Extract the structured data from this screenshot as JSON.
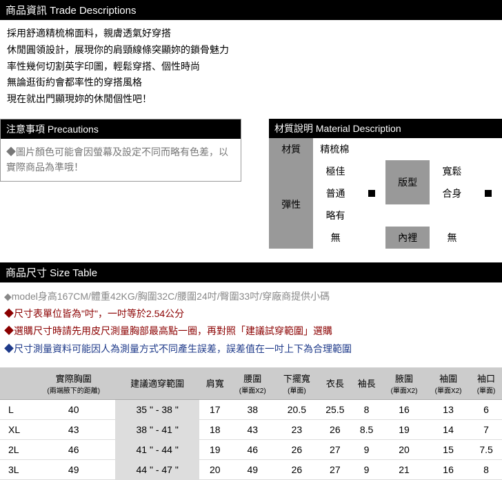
{
  "trade": {
    "header": "商品資訊 Trade Descriptions",
    "lines": [
      "採用舒適精梳棉面料，親膚透氣好穿搭",
      "休閒圓領設計，展現你的肩頸線條突顯妳的鎖骨魅力",
      "率性幾何切割英字印圖，輕鬆穿搭、個性時尚",
      "無論逛街約會都率性的穿搭風格",
      "現在就出門顯現妳的休閒個性吧！"
    ]
  },
  "precautions": {
    "header": "注意事項 Precautions",
    "body": "◆圖片顏色可能會因螢幕及設定不同而略有色差，以實際商品為準哦！"
  },
  "material": {
    "header": "材質說明 Material Description",
    "label_material": "材質",
    "value_material": "精梳棉",
    "label_elastic": "彈性",
    "elastic_options": [
      "極佳",
      "普通",
      "略有",
      "無"
    ],
    "elastic_selected": "普通",
    "label_fit": "版型",
    "fit_options": [
      "寬鬆",
      "合身"
    ],
    "fit_selected": "合身",
    "label_lining": "內裡",
    "lining_value": "無"
  },
  "size": {
    "header": "商品尺寸 Size Table",
    "notes": [
      {
        "color": "#888888",
        "text": "◆model身高167CM/體重42KG/胸圍32C/腰圍24吋/臀圍33吋/穿廠商提供小碼"
      },
      {
        "color": "#8b0000",
        "text": "◆尺寸表單位皆為\"吋\"，一吋等於2.54公分"
      },
      {
        "color": "#8b0000",
        "text": "◆選購尺寸時請先用皮尺測量胸部最高點一圈，再對照「建議試穿範圍」選購"
      },
      {
        "color": "#1e3a8a",
        "text": "◆尺寸測量資料可能因人為測量方式不同產生誤差，誤差值在一吋上下為合理範圍"
      }
    ],
    "columns": [
      {
        "main": "",
        "sub": ""
      },
      {
        "main": "實際胸圍",
        "sub": "(兩端腋下的距離)"
      },
      {
        "main": "建議適穿範圍",
        "sub": ""
      },
      {
        "main": "肩寬",
        "sub": ""
      },
      {
        "main": "腰圍",
        "sub": "(單面X2)"
      },
      {
        "main": "下擺寬",
        "sub": "(單面)"
      },
      {
        "main": "衣長",
        "sub": ""
      },
      {
        "main": "袖長",
        "sub": ""
      },
      {
        "main": "腋圍",
        "sub": "(單面X2)"
      },
      {
        "main": "袖圍",
        "sub": "(單面X2)"
      },
      {
        "main": "袖口",
        "sub": "(單面)"
      }
    ],
    "rows": [
      [
        "L",
        "40",
        "35 \" - 38 \"",
        "17",
        "38",
        "20.5",
        "25.5",
        "8",
        "16",
        "13",
        "6"
      ],
      [
        "XL",
        "43",
        "38 \" - 41 \"",
        "18",
        "43",
        "23",
        "26",
        "8.5",
        "19",
        "14",
        "7"
      ],
      [
        "2L",
        "46",
        "41 \" - 44 \"",
        "19",
        "46",
        "26",
        "27",
        "9",
        "20",
        "15",
        "7.5"
      ],
      [
        "3L",
        "49",
        "44 \" - 47 \"",
        "20",
        "49",
        "26",
        "27",
        "9",
        "21",
        "16",
        "8"
      ]
    ],
    "range_col_index": 2,
    "header_bg": "#cccccc",
    "range_bg": "#dddddd"
  }
}
